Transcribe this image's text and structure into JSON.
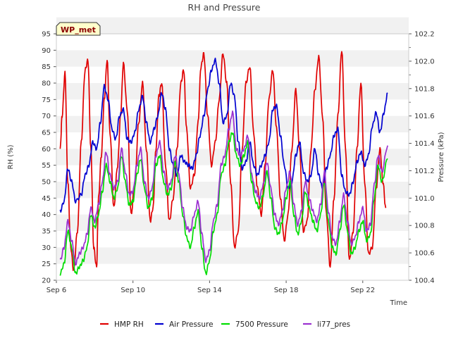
{
  "chart_data": {
    "type": "line",
    "title": "RH and Pressure",
    "xlabel": "Time",
    "ylabel_left": "RH (%)",
    "ylabel_right": "Pressure (kPa)",
    "badge": "WP_met",
    "x_start": "Sep 6",
    "x_ticks": [
      "Sep 6",
      "Sep 10",
      "Sep 14",
      "Sep 18",
      "Sep 22"
    ],
    "y_left_ticks": [
      20,
      25,
      30,
      35,
      40,
      45,
      50,
      55,
      60,
      65,
      70,
      75,
      80,
      85,
      90,
      95
    ],
    "y_right_ticks": [
      "100.4",
      "100.6",
      "100.8",
      "101.0",
      "101.2",
      "101.4",
      "101.6",
      "101.8",
      "102.0",
      "102.2"
    ],
    "ylim_left": [
      20,
      95
    ],
    "ylim_right": [
      100.4,
      102.2
    ],
    "xlim_days": [
      6,
      24.4
    ],
    "grid_bands": true,
    "legend_position": "bottom",
    "series": [
      {
        "name": "HMP RH",
        "axis": "left",
        "color": "#e00000",
        "x": [
          6.2,
          6.3,
          6.45,
          6.6,
          6.75,
          6.9,
          7.1,
          7.3,
          7.5,
          7.65,
          7.8,
          7.95,
          8.1,
          8.2,
          8.35,
          8.5,
          8.65,
          8.8,
          9.0,
          9.2,
          9.35,
          9.5,
          9.7,
          9.9,
          10.1,
          10.3,
          10.5,
          10.7,
          10.9,
          11.05,
          11.2,
          11.35,
          11.5,
          11.7,
          11.9,
          12.1,
          12.3,
          12.5,
          12.65,
          12.8,
          13.0,
          13.2,
          13.4,
          13.55,
          13.7,
          13.9,
          14.1,
          14.3,
          14.5,
          14.7,
          14.9,
          15.1,
          15.3,
          15.5,
          15.7,
          15.9,
          16.1,
          16.3,
          16.5,
          16.7,
          16.9,
          17.1,
          17.3,
          17.5,
          17.7,
          17.9,
          18.1,
          18.3,
          18.5,
          18.7,
          18.9,
          19.1,
          19.3,
          19.5,
          19.7,
          19.9,
          20.1,
          20.3,
          20.5,
          20.7,
          20.9,
          21.1,
          21.3,
          21.5,
          21.7,
          21.9,
          22.1,
          22.3,
          22.5,
          22.7,
          22.9,
          23.05,
          23.2
        ],
        "values": [
          60,
          70,
          83,
          50,
          30,
          23,
          35,
          62,
          84,
          87,
          60,
          30,
          24,
          45,
          58,
          75,
          87,
          65,
          42,
          55,
          70,
          86,
          72,
          40,
          50,
          68,
          80,
          60,
          38,
          42,
          60,
          76,
          80,
          55,
          38,
          45,
          60,
          80,
          84,
          66,
          48,
          52,
          68,
          85,
          89,
          70,
          55,
          62,
          75,
          89,
          80,
          50,
          30,
          35,
          60,
          80,
          85,
          65,
          48,
          40,
          55,
          75,
          84,
          66,
          45,
          32,
          40,
          60,
          78,
          60,
          35,
          38,
          60,
          78,
          88,
          70,
          40,
          24,
          45,
          70,
          90,
          60,
          26,
          35,
          60,
          80,
          50,
          28,
          30,
          48,
          60,
          50,
          42
        ]
      },
      {
        "name": "Air Pressure",
        "axis": "left",
        "color": "#0000d0",
        "x": [
          6.2,
          6.4,
          6.6,
          6.8,
          7.0,
          7.3,
          7.5,
          7.7,
          7.9,
          8.1,
          8.3,
          8.5,
          8.7,
          8.9,
          9.1,
          9.3,
          9.5,
          9.7,
          9.9,
          10.1,
          10.3,
          10.5,
          10.7,
          10.9,
          11.1,
          11.3,
          11.5,
          11.7,
          11.9,
          12.1,
          12.3,
          12.5,
          12.7,
          12.9,
          13.1,
          13.3,
          13.5,
          13.7,
          13.9,
          14.1,
          14.3,
          14.5,
          14.7,
          14.9,
          15.1,
          15.3,
          15.5,
          15.7,
          15.9,
          16.1,
          16.3,
          16.5,
          16.7,
          16.9,
          17.1,
          17.3,
          17.5,
          17.7,
          17.9,
          18.1,
          18.3,
          18.5,
          18.7,
          18.9,
          19.1,
          19.3,
          19.5,
          19.7,
          19.9,
          20.1,
          20.3,
          20.5,
          20.7,
          20.9,
          21.1,
          21.3,
          21.5,
          21.7,
          21.9,
          22.1,
          22.3,
          22.5,
          22.7,
          22.9,
          23.1,
          23.3
        ],
        "values": [
          41,
          44,
          54,
          50,
          44,
          46,
          52,
          55,
          62,
          60,
          68,
          79,
          75,
          66,
          63,
          70,
          72,
          63,
          62,
          65,
          72,
          76,
          68,
          62,
          66,
          70,
          77,
          72,
          60,
          55,
          52,
          58,
          56,
          55,
          54,
          58,
          64,
          70,
          78,
          84,
          87,
          80,
          68,
          70,
          80,
          76,
          62,
          54,
          56,
          62,
          55,
          52,
          55,
          58,
          62,
          72,
          73,
          64,
          55,
          48,
          50,
          58,
          62,
          53,
          50,
          52,
          60,
          52,
          48,
          54,
          58,
          64,
          66,
          52,
          47,
          46,
          50,
          56,
          59,
          55,
          58,
          67,
          71,
          65,
          71,
          77
        ]
      },
      {
        "name": "7500 Pressure",
        "axis": "left",
        "color": "#00dd00",
        "x": [
          6.2,
          6.4,
          6.6,
          6.8,
          7.0,
          7.2,
          7.4,
          7.6,
          7.8,
          8.0,
          8.2,
          8.4,
          8.6,
          8.8,
          9.0,
          9.2,
          9.4,
          9.6,
          9.8,
          10.0,
          10.2,
          10.4,
          10.6,
          10.8,
          11.0,
          11.2,
          11.4,
          11.6,
          11.8,
          12.0,
          12.2,
          12.4,
          12.6,
          12.8,
          13.0,
          13.2,
          13.4,
          13.6,
          13.8,
          14.0,
          14.2,
          14.4,
          14.6,
          14.8,
          15.0,
          15.2,
          15.4,
          15.6,
          15.8,
          16.0,
          16.2,
          16.4,
          16.6,
          16.8,
          17.0,
          17.2,
          17.4,
          17.6,
          17.8,
          18.0,
          18.2,
          18.4,
          18.6,
          18.8,
          19.0,
          19.2,
          19.4,
          19.6,
          19.8,
          20.0,
          20.2,
          20.4,
          20.6,
          20.8,
          21.0,
          21.2,
          21.4,
          21.6,
          21.8,
          22.0,
          22.2,
          22.4,
          22.6,
          22.8,
          23.0,
          23.3
        ],
        "values": [
          22,
          25,
          35,
          30,
          22,
          24,
          26,
          30,
          40,
          36,
          40,
          47,
          55,
          50,
          45,
          48,
          58,
          50,
          43,
          44,
          52,
          57,
          48,
          42,
          45,
          55,
          58,
          50,
          46,
          48,
          56,
          50,
          40,
          33,
          30,
          36,
          41,
          30,
          22,
          26,
          35,
          40,
          52,
          55,
          62,
          65,
          58,
          55,
          58,
          62,
          50,
          44,
          42,
          46,
          53,
          45,
          36,
          34,
          38,
          45,
          50,
          40,
          34,
          38,
          47,
          42,
          38,
          35,
          40,
          50,
          38,
          30,
          28,
          35,
          43,
          35,
          28,
          30,
          35,
          38,
          32,
          34,
          45,
          55,
          50,
          57
        ]
      },
      {
        "name": "li77_pres",
        "axis": "left",
        "color": "#9b30d0",
        "x": [
          6.2,
          6.4,
          6.6,
          6.8,
          7.0,
          7.2,
          7.4,
          7.6,
          7.8,
          8.0,
          8.2,
          8.4,
          8.6,
          8.8,
          9.0,
          9.2,
          9.4,
          9.6,
          9.8,
          10.0,
          10.2,
          10.4,
          10.6,
          10.8,
          11.0,
          11.2,
          11.4,
          11.6,
          11.8,
          12.0,
          12.2,
          12.4,
          12.6,
          12.8,
          13.0,
          13.2,
          13.4,
          13.6,
          13.8,
          14.0,
          14.2,
          14.4,
          14.6,
          14.8,
          15.0,
          15.2,
          15.4,
          15.6,
          15.8,
          16.0,
          16.2,
          16.4,
          16.6,
          16.8,
          17.0,
          17.2,
          17.4,
          17.6,
          17.8,
          18.0,
          18.2,
          18.4,
          18.6,
          18.8,
          19.0,
          19.2,
          19.4,
          19.6,
          19.8,
          20.0,
          20.2,
          20.4,
          20.6,
          20.8,
          21.0,
          21.2,
          21.4,
          21.6,
          21.8,
          22.0,
          22.2,
          22.4,
          22.6,
          22.8,
          23.0,
          23.3
        ],
        "values": [
          26,
          30,
          38,
          32,
          25,
          28,
          30,
          34,
          42,
          38,
          43,
          50,
          59,
          52,
          48,
          50,
          60,
          53,
          46,
          47,
          55,
          60,
          50,
          45,
          48,
          58,
          62,
          53,
          48,
          50,
          58,
          52,
          42,
          36,
          35,
          40,
          44,
          34,
          26,
          29,
          38,
          43,
          55,
          58,
          66,
          71,
          60,
          58,
          60,
          64,
          52,
          47,
          45,
          49,
          56,
          48,
          40,
          37,
          41,
          48,
          53,
          43,
          37,
          41,
          50,
          45,
          41,
          38,
          43,
          53,
          41,
          33,
          31,
          38,
          46,
          38,
          31,
          33,
          38,
          42,
          35,
          37,
          49,
          58,
          53,
          61
        ]
      }
    ]
  }
}
